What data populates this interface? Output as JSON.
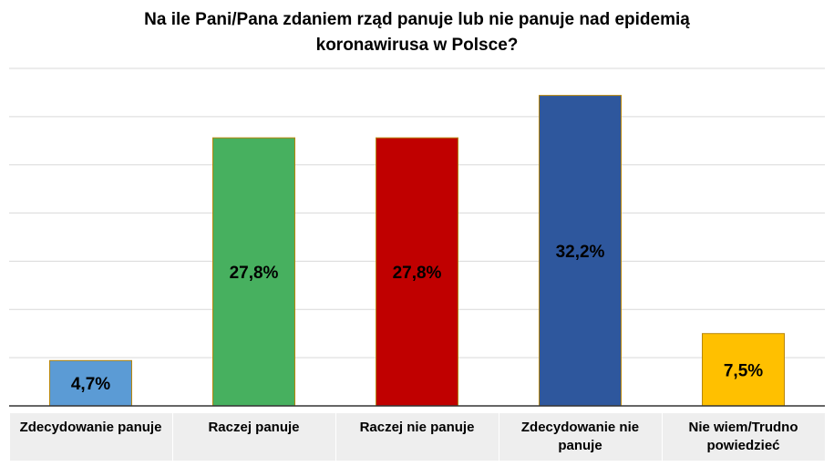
{
  "chart_data": {
    "type": "bar",
    "title_lines": [
      "Na ile Pani/Pana zdaniem rząd panuje lub nie panuje nad epidemią",
      "koronawirusa w Polsce?"
    ],
    "categories": [
      "Zdecydowanie panuje",
      "Raczej panuje",
      "Raczej nie panuje",
      "Zdecydowanie nie panuje",
      "Nie wiem/Trudno powiedzieć"
    ],
    "values": [
      4.7,
      27.8,
      27.8,
      32.2,
      7.5
    ],
    "value_labels": [
      "4,7%",
      "27,8%",
      "27,8%",
      "32,2%",
      "7,5%"
    ],
    "colors": [
      "#5b9bd5",
      "#47b05f",
      "#c00000",
      "#2e579d",
      "#ffc000"
    ],
    "ylim": [
      0,
      35
    ],
    "grid": true,
    "xlabel": "",
    "ylabel": ""
  }
}
